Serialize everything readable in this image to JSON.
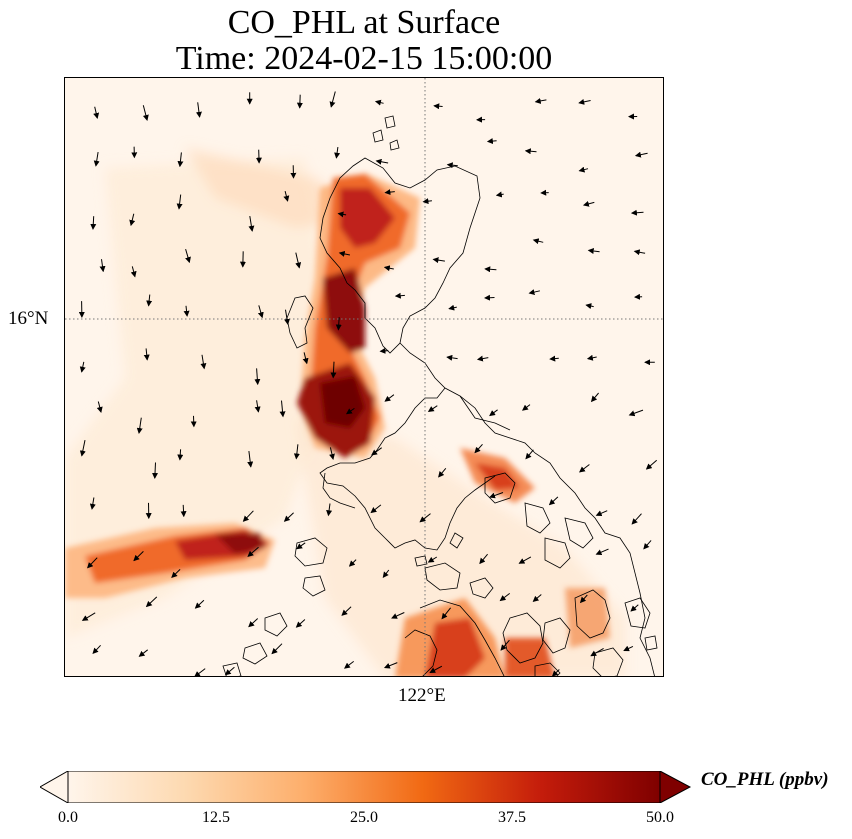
{
  "title": {
    "line1": "CO_PHL at Surface",
    "line2": "Time: 2024-02-15 15:00:00"
  },
  "axes": {
    "lat_tick": "16°N",
    "lon_tick": "122°E"
  },
  "colorbar": {
    "label": "CO_PHL (ppbv)",
    "min": 0.0,
    "max": 50.0,
    "ticks": [
      "0.0",
      "12.5",
      "25.0",
      "37.5",
      "50.0"
    ],
    "colors": [
      "#fff5eb",
      "#fdd9b0",
      "#fdae6b",
      "#f16913",
      "#c41c0b",
      "#7f0000"
    ],
    "extend": "both"
  },
  "map": {
    "background_color": "#fff5eb",
    "coastline_color": "#000000",
    "gridline_style": "dotted",
    "wind_vectors": "arrows (quiver)"
  }
}
